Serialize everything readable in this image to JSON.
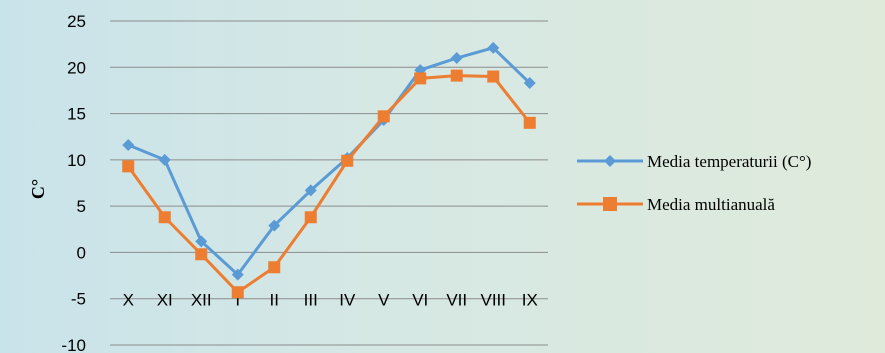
{
  "chart_data": {
    "type": "line",
    "title": "",
    "xlabel": "",
    "ylabel": "C°",
    "ylim": [
      -10,
      25
    ],
    "yticks": [
      25,
      20,
      15,
      10,
      5,
      0,
      -5,
      -10
    ],
    "grid": true,
    "legend_position": "right",
    "categories": [
      "X",
      "XI",
      "XII",
      "I",
      "II",
      "III",
      "IV",
      "V",
      "VI",
      "VII",
      "VIII",
      "IX"
    ],
    "series": [
      {
        "name": "Media temperaturii  (C°)",
        "color": "#5b9bd5",
        "marker": "diamond",
        "values": [
          11.6,
          10.0,
          1.2,
          -2.4,
          2.9,
          6.7,
          10.2,
          14.3,
          19.7,
          21.0,
          22.1,
          18.3
        ]
      },
      {
        "name": "Media multianuală",
        "color": "#ed7d31",
        "marker": "square",
        "values": [
          9.3,
          3.8,
          -0.2,
          -4.3,
          -1.6,
          3.8,
          9.9,
          14.7,
          18.8,
          19.1,
          19.0,
          14.0
        ]
      }
    ]
  }
}
